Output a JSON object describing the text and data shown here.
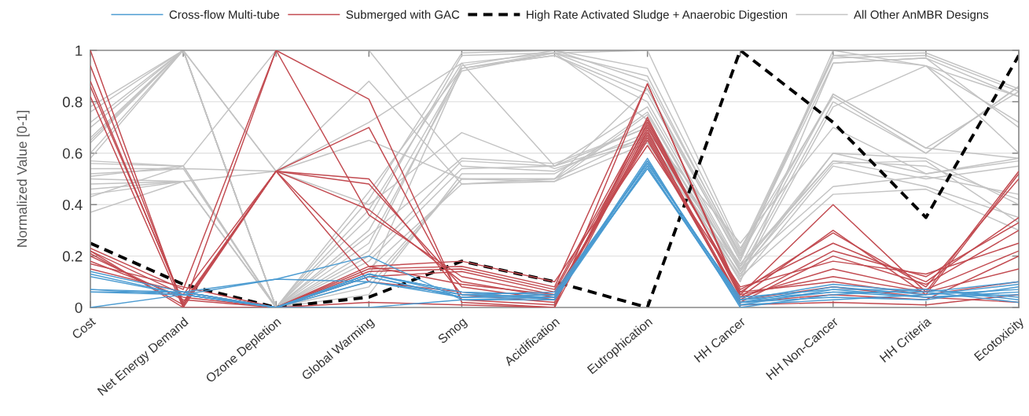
{
  "chart_data": {
    "type": "line",
    "ylabel": "Normalized Value [0-1]",
    "categories": [
      "Cost",
      "Net Energy Demand",
      "Ozone Depletion",
      "Global Warming",
      "Smog",
      "Acidification",
      "Eutrophication",
      "HH Cancer",
      "HH Non-Cancer",
      "HH Criteria",
      "Ecotoxicity"
    ],
    "ylim": [
      0,
      1
    ],
    "yticks": [
      0,
      0.2,
      0.4,
      0.6,
      0.8,
      1
    ],
    "grid": "y",
    "legend": "top",
    "line_style": "solid",
    "series": [
      {
        "name": "Cross-flow Multi-tube",
        "color": "#4b9bd1",
        "values": [
          0.14,
          0.06,
          0.0,
          0.13,
          0.05,
          0.04,
          0.57,
          0.02,
          0.08,
          0.05,
          0.09
        ]
      },
      {
        "color": "#4b9bd1",
        "values": [
          0.13,
          0.05,
          0.0,
          0.12,
          0.04,
          0.05,
          0.56,
          0.03,
          0.06,
          0.06,
          0.1
        ]
      },
      {
        "color": "#4b9bd1",
        "values": [
          0.12,
          0.05,
          0.0,
          0.13,
          0.06,
          0.03,
          0.55,
          0.01,
          0.07,
          0.04,
          0.06
        ]
      },
      {
        "color": "#4b9bd1",
        "values": [
          0.07,
          0.06,
          0.11,
          0.2,
          0.03,
          0.04,
          0.58,
          0.0,
          0.05,
          0.07,
          0.04
        ]
      },
      {
        "color": "#4b9bd1",
        "values": [
          0.06,
          0.05,
          0.0,
          0.12,
          0.04,
          0.05,
          0.54,
          0.02,
          0.04,
          0.03,
          0.08
        ]
      },
      {
        "color": "#4b9bd1",
        "values": [
          0.06,
          0.06,
          0.0,
          0.1,
          0.05,
          0.06,
          0.56,
          0.03,
          0.09,
          0.06,
          0.02
        ]
      },
      {
        "color": "#4b9bd1",
        "values": [
          0.0,
          0.05,
          0.11,
          0.1,
          0.04,
          0.04,
          0.55,
          0.01,
          0.03,
          0.05,
          0.07
        ]
      },
      {
        "color": "#4b9bd1",
        "values": [
          0.06,
          0.06,
          0.0,
          0.0,
          0.03,
          0.03,
          0.57,
          0.02,
          0.06,
          0.04,
          0.05
        ]
      },
      {
        "color": "#4b9bd1",
        "values": [
          0.07,
          0.05,
          0.0,
          0.13,
          0.06,
          0.05,
          0.54,
          0.04,
          0.07,
          0.07,
          0.03
        ]
      },
      {
        "name": "Submerged with GAC",
        "color": "#c24a50",
        "values": [
          1.0,
          0.0,
          1.0,
          0.81,
          0.02,
          0.0,
          0.87,
          0.05,
          0.4,
          0.06,
          0.53
        ]
      },
      {
        "color": "#c24a50",
        "values": [
          0.94,
          0.01,
          0.53,
          0.7,
          0.03,
          0.01,
          0.74,
          0.04,
          0.3,
          0.05,
          0.52
        ]
      },
      {
        "color": "#c24a50",
        "values": [
          0.88,
          0.01,
          0.53,
          0.5,
          0.05,
          0.02,
          0.72,
          0.06,
          0.29,
          0.08,
          0.5
        ]
      },
      {
        "color": "#c24a50",
        "values": [
          0.86,
          0.02,
          0.53,
          0.48,
          0.08,
          0.03,
          0.7,
          0.07,
          0.25,
          0.1,
          0.35
        ]
      },
      {
        "color": "#c24a50",
        "values": [
          0.82,
          0.0,
          0.53,
          0.38,
          0.1,
          0.04,
          0.68,
          0.03,
          0.22,
          0.12,
          0.33
        ]
      },
      {
        "color": "#c24a50",
        "values": [
          0.23,
          0.07,
          1.0,
          0.36,
          0.12,
          0.05,
          0.66,
          0.02,
          0.2,
          0.09,
          0.3
        ]
      },
      {
        "color": "#c24a50",
        "values": [
          0.22,
          0.05,
          0.53,
          0.16,
          0.18,
          0.1,
          0.63,
          0.08,
          0.18,
          0.13,
          0.25
        ]
      },
      {
        "color": "#c24a50",
        "values": [
          0.2,
          0.03,
          0.0,
          0.15,
          0.16,
          0.08,
          0.87,
          0.04,
          0.15,
          0.07,
          0.22
        ]
      },
      {
        "color": "#c24a50",
        "values": [
          0.17,
          0.08,
          0.0,
          0.14,
          0.15,
          0.07,
          0.73,
          0.05,
          0.12,
          0.06,
          0.15
        ]
      },
      {
        "color": "#c24a50",
        "values": [
          0.15,
          0.06,
          0.0,
          0.12,
          0.14,
          0.06,
          0.71,
          0.06,
          0.1,
          0.05,
          0.1
        ]
      },
      {
        "color": "#c24a50",
        "values": [
          0.22,
          0.0,
          0.0,
          0.02,
          0.01,
          0.0,
          0.69,
          0.01,
          0.02,
          0.01,
          0.05
        ]
      },
      {
        "color": "#c24a50",
        "values": [
          0.18,
          0.04,
          0.0,
          0.16,
          0.09,
          0.05,
          0.65,
          0.03,
          0.08,
          0.04,
          0.02
        ]
      },
      {
        "color": "#c24a50",
        "values": [
          0.21,
          0.01,
          0.53,
          0.1,
          0.06,
          0.03,
          0.67,
          0.02,
          0.05,
          0.03,
          0.2
        ]
      },
      {
        "name": "High Rate Activated Sludge + Anaerobic Digestion",
        "color": "#000000",
        "line_style": "dashed",
        "values": [
          0.25,
          0.09,
          0.0,
          0.04,
          0.18,
          0.1,
          0.0,
          1.0,
          0.72,
          0.35,
          0.98
        ]
      },
      {
        "name": "All Other AnMBR Designs",
        "color": "#c3c3c3",
        "values": [
          0.78,
          1.0,
          0.0,
          0.42,
          0.99,
          1.0,
          0.93,
          0.22,
          0.98,
          0.99,
          0.85
        ]
      },
      {
        "color": "#c3c3c3",
        "values": [
          0.76,
          1.0,
          0.0,
          0.38,
          0.95,
          0.99,
          0.9,
          0.2,
          0.95,
          0.97,
          0.82
        ]
      },
      {
        "color": "#c3c3c3",
        "values": [
          0.72,
          1.0,
          0.53,
          0.88,
          0.48,
          0.5,
          0.85,
          0.18,
          1.0,
          0.94,
          0.72
        ]
      },
      {
        "color": "#c3c3c3",
        "values": [
          0.7,
          1.0,
          0.0,
          0.3,
          0.93,
          0.98,
          0.8,
          0.16,
          0.83,
          0.62,
          0.84
        ]
      },
      {
        "color": "#c3c3c3",
        "values": [
          0.66,
          1.0,
          0.53,
          0.65,
          0.5,
          0.5,
          0.76,
          0.14,
          0.8,
          0.6,
          0.86
        ]
      },
      {
        "color": "#c3c3c3",
        "values": [
          0.65,
          1.0,
          0.0,
          0.25,
          0.92,
          0.99,
          0.73,
          0.12,
          0.78,
          0.94,
          0.6
        ]
      },
      {
        "color": "#c3c3c3",
        "values": [
          0.6,
          1.0,
          0.0,
          0.2,
          0.57,
          0.55,
          0.7,
          0.1,
          0.95,
          0.97,
          0.7
        ]
      },
      {
        "color": "#c3c3c3",
        "values": [
          0.57,
          0.55,
          1.0,
          1.0,
          0.55,
          0.53,
          0.68,
          0.25,
          0.7,
          0.52,
          0.58
        ]
      },
      {
        "color": "#c3c3c3",
        "values": [
          0.56,
          0.55,
          0.0,
          0.15,
          0.48,
          0.49,
          0.64,
          0.13,
          0.6,
          0.58,
          0.4
        ]
      },
      {
        "color": "#c3c3c3",
        "values": [
          0.52,
          0.54,
          0.53,
          0.72,
          0.95,
          0.55,
          0.66,
          0.17,
          0.57,
          0.5,
          0.55
        ]
      },
      {
        "color": "#c3c3c3",
        "values": [
          0.51,
          0.55,
          0.0,
          0.1,
          0.5,
          0.5,
          0.67,
          0.11,
          0.55,
          0.47,
          0.35
        ]
      },
      {
        "color": "#c3c3c3",
        "values": [
          0.5,
          0.49,
          0.53,
          0.4,
          0.68,
          0.54,
          0.65,
          0.15,
          0.47,
          0.51,
          0.44
        ]
      },
      {
        "color": "#c3c3c3",
        "values": [
          0.46,
          0.49,
          0.0,
          0.05,
          0.52,
          0.52,
          0.72,
          0.12,
          0.44,
          0.46,
          0.3
        ]
      },
      {
        "color": "#c3c3c3",
        "values": [
          0.44,
          0.49,
          0.0,
          0.35,
          0.98,
          0.99,
          0.85,
          0.2,
          0.83,
          0.62,
          0.58
        ]
      },
      {
        "color": "#c3c3c3",
        "values": [
          0.43,
          0.55,
          0.0,
          0.45,
          0.93,
          0.98,
          0.83,
          0.19,
          0.98,
          0.94,
          0.82
        ]
      },
      {
        "color": "#c3c3c3",
        "values": [
          0.37,
          0.49,
          0.0,
          0.08,
          0.5,
          0.49,
          0.75,
          0.14,
          0.56,
          0.57,
          0.33
        ]
      },
      {
        "color": "#c3c3c3",
        "values": [
          0.64,
          1.0,
          0.0,
          0.12,
          0.93,
          0.99,
          1.0,
          0.23,
          0.82,
          0.6,
          0.86
        ]
      },
      {
        "color": "#c3c3c3",
        "values": [
          0.58,
          1.0,
          0.0,
          0.18,
          0.54,
          0.55,
          0.78,
          0.15,
          0.6,
          0.52,
          0.57
        ]
      },
      {
        "color": "#c3c3c3",
        "values": [
          0.54,
          0.54,
          0.0,
          0.28,
          0.58,
          0.56,
          0.7,
          0.16,
          0.57,
          0.55,
          0.42
        ]
      },
      {
        "color": "#c3c3c3",
        "values": [
          0.48,
          0.49,
          0.0,
          0.22,
          0.94,
          1.0,
          0.88,
          0.21,
          0.97,
          0.98,
          0.84
        ]
      }
    ]
  }
}
